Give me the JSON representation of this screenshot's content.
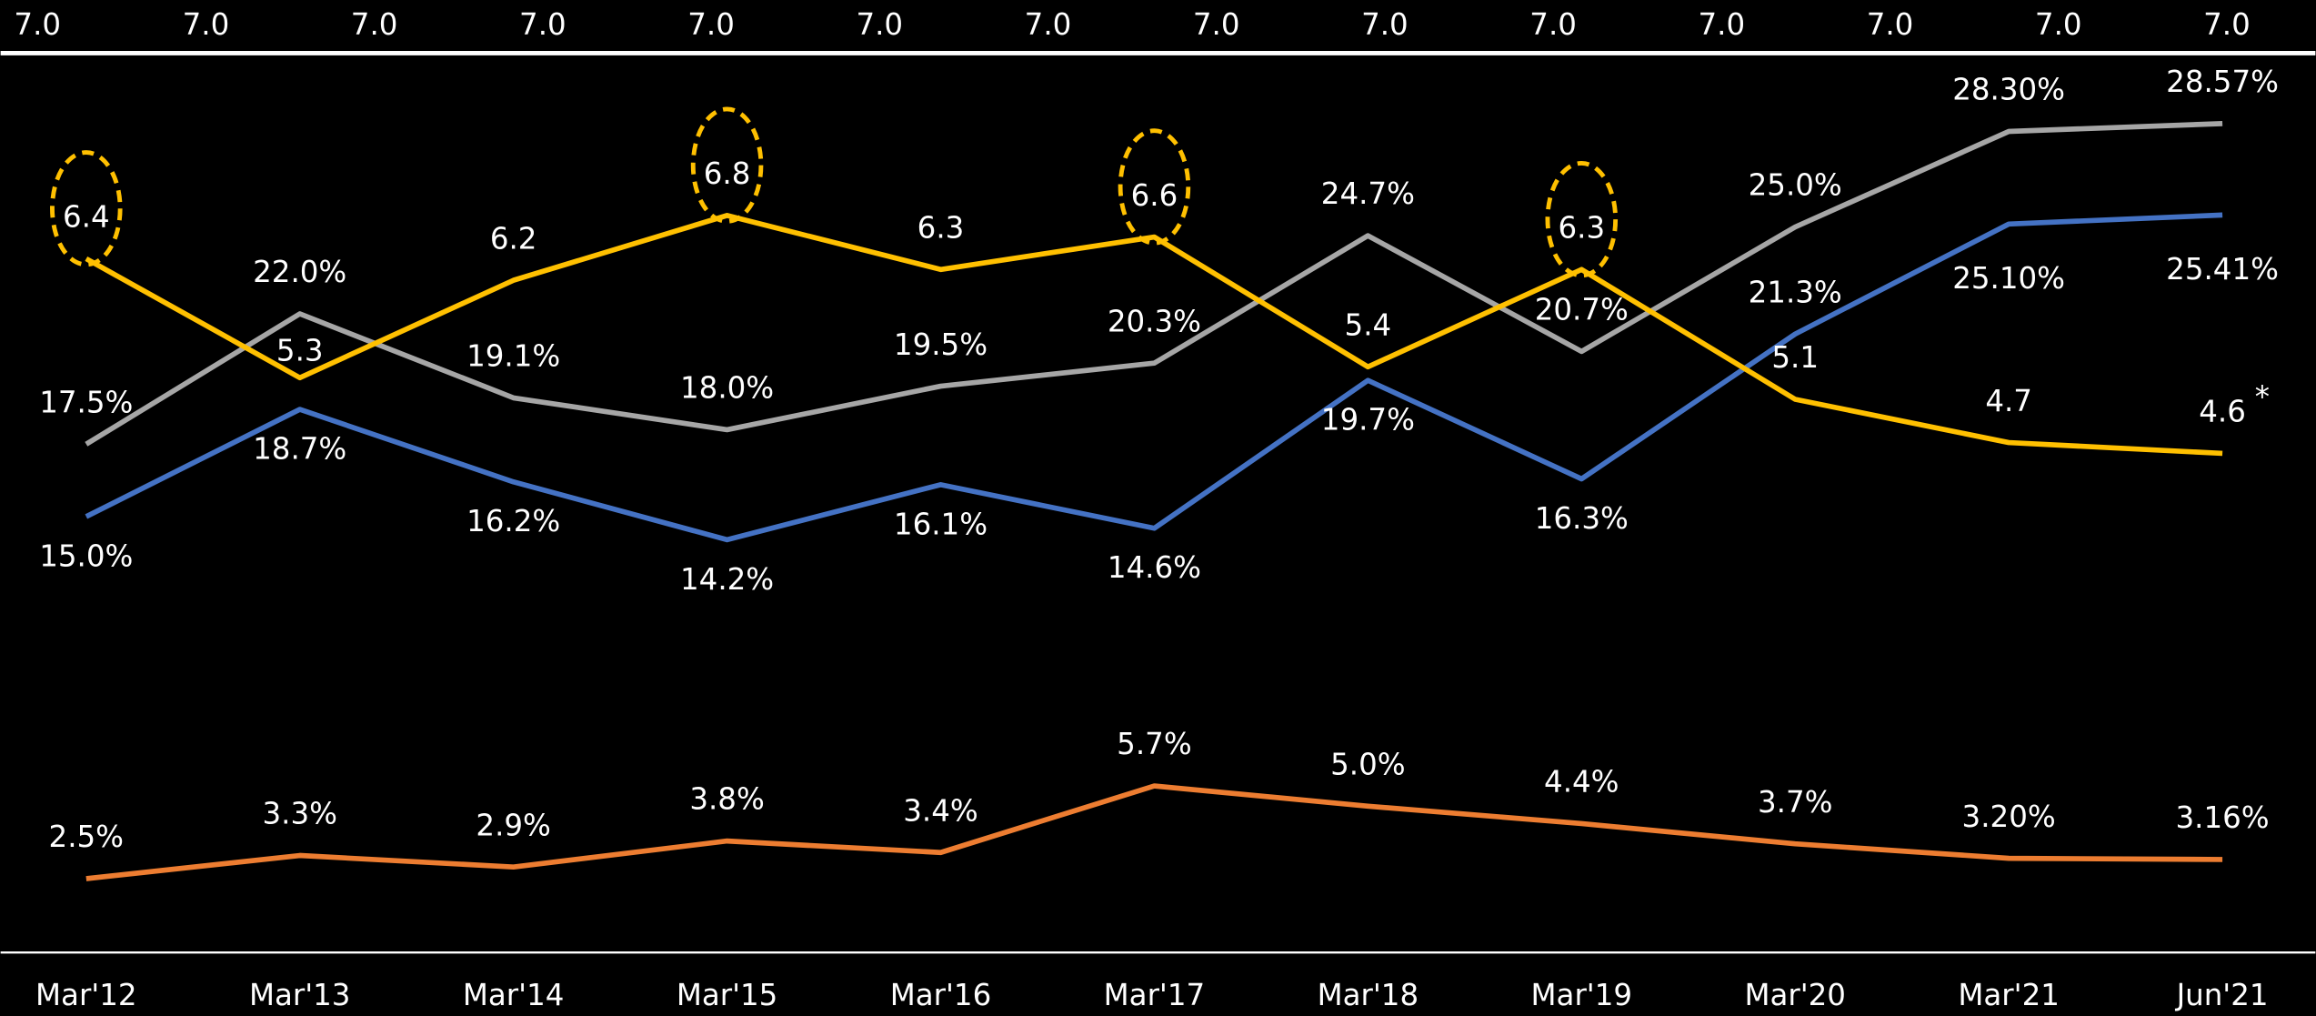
{
  "chart_data": {
    "type": "line",
    "header_labels": [
      "7.0",
      "7.0",
      "7.0",
      "7.0",
      "7.0",
      "7.0",
      "7.0",
      "7.0",
      "7.0",
      "7.0",
      "7.0",
      "7.0",
      "7.0",
      "7.0"
    ],
    "categories": [
      "Mar'12",
      "Mar'13",
      "Mar'14",
      "Mar'15",
      "Mar'16",
      "Mar'17",
      "Mar'18",
      "Mar'19",
      "Mar'20",
      "Mar'21",
      "Jun'21"
    ],
    "ylim": [
      0,
      31
    ],
    "y2lim": [
      0,
      8.3
    ],
    "series": [
      {
        "name": null,
        "color": "#a6a6a6",
        "values": [
          17.5,
          22.0,
          19.1,
          18.0,
          19.5,
          20.3,
          24.7,
          20.7,
          25.0,
          28.3,
          28.57
        ],
        "value_labels": [
          "17.5%",
          "22.0%",
          "19.1%",
          "18.0%",
          "19.5%",
          "20.3%",
          "24.7%",
          "20.7%",
          "25.0%",
          "28.30%",
          "28.57%"
        ]
      },
      {
        "name": null,
        "color": "#4472c4",
        "values": [
          15.0,
          18.7,
          16.2,
          14.2,
          16.1,
          14.6,
          19.7,
          16.3,
          21.3,
          25.1,
          25.41
        ],
        "value_labels": [
          "15.0%",
          "18.7%",
          "16.2%",
          "14.2%",
          "16.1%",
          "14.6%",
          "19.7%",
          "16.3%",
          "21.3%",
          "25.10%",
          "25.41%"
        ]
      },
      {
        "name": null,
        "color": "#ffc000",
        "axis": "y2",
        "values": [
          6.4,
          5.3,
          6.2,
          6.8,
          6.3,
          6.6,
          5.4,
          6.3,
          5.1,
          4.7,
          4.6
        ],
        "value_labels": [
          "6.4",
          "5.3",
          "6.2",
          "6.8",
          "6.3",
          "6.6",
          "5.4",
          "6.3",
          "5.1",
          "4.7",
          "4.6"
        ],
        "highlighted": [
          0,
          3,
          5,
          7
        ],
        "annotation": "*"
      },
      {
        "name": null,
        "color": "#ed7d31",
        "values": [
          2.5,
          3.3,
          2.9,
          3.8,
          3.4,
          5.7,
          5.0,
          4.4,
          3.7,
          3.2,
          3.16
        ],
        "value_labels": [
          "2.5%",
          "3.3%",
          "2.9%",
          "3.8%",
          "3.4%",
          "5.7%",
          "5.0%",
          "4.4%",
          "3.7%",
          "3.20%",
          "3.16%"
        ]
      }
    ]
  }
}
